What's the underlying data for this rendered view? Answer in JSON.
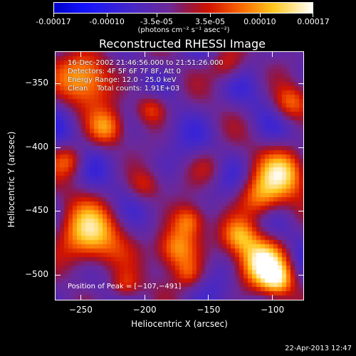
{
  "colorbar": {
    "ticks": [
      "-0.00017",
      "-0.00010",
      "-3.5e-05",
      "3.5e-05",
      "0.00010",
      "0.00017"
    ],
    "units": "(photons cm⁻² s⁻¹ asec⁻²)",
    "range": [
      -0.00017,
      0.00017
    ]
  },
  "chart_data": {
    "type": "heatmap",
    "title": "Reconstructed RHESSI Image",
    "xlabel": "Heliocentric X (arcsec)",
    "ylabel": "Heliocentric Y (arcsec)",
    "xlim": [
      -270,
      -75
    ],
    "ylim": [
      -520,
      -325
    ],
    "xticks": [
      -250,
      -200,
      -150,
      -100
    ],
    "yticks": [
      -350,
      -400,
      -450,
      -500
    ],
    "xtick_labels": [
      "−250",
      "−200",
      "−150",
      "−100"
    ],
    "ytick_labels": [
      "−350",
      "−400",
      "−450",
      "−500"
    ],
    "peak": [
      -107,
      -491
    ],
    "info_lines": [
      "16-Dec-2002 21:46:56.000 to 21:51:26.000",
      "Detectors: 4F 5F 6F 7F 8F, Att 0",
      "Energy Range: 12.0 - 25.0 keV",
      "Clean    Total counts: 1.91E+03"
    ],
    "peak_label": "Position of Peak = [−107,−491]"
  },
  "timestamp": "22-Apr-2013 12:47"
}
